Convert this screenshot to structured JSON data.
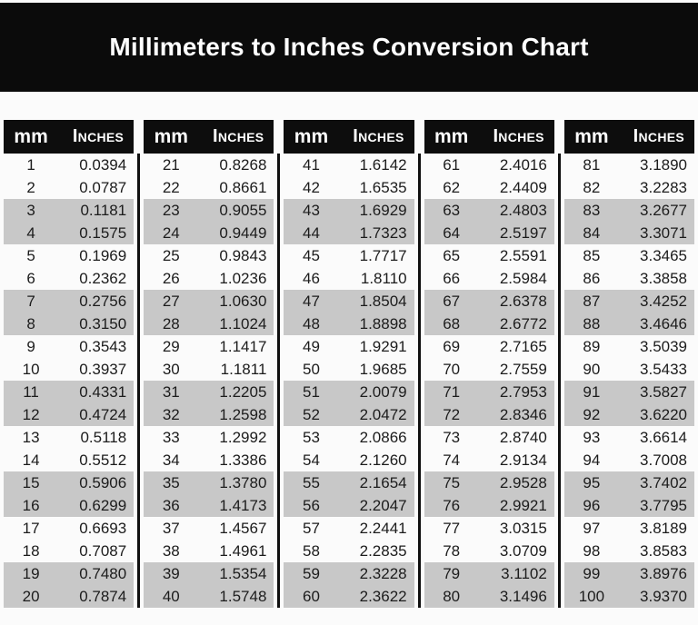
{
  "title": "Millimeters to Inches Conversion Chart",
  "colors": {
    "page_bg": "#fbfbfb",
    "banner_bg": "#0b0b0b",
    "header_bg": "#0d0d0d",
    "header_text": "#ffffff",
    "text": "#1c1c1c",
    "stripe": "#c8c8c8",
    "divider": "#101010"
  },
  "chart_data": {
    "type": "table",
    "title": "Millimeters to Inches Conversion Chart",
    "columns": [
      "mm",
      "Inches"
    ],
    "layout": {
      "column_groups": 5,
      "rows_per_group": 20,
      "stripe_pattern": "alternating pairs of rows shaded gray",
      "mm_range": [
        1,
        100
      ]
    },
    "groups": [
      [
        [
          "1",
          "0.0394"
        ],
        [
          "2",
          "0.0787"
        ],
        [
          "3",
          "0.1181"
        ],
        [
          "4",
          "0.1575"
        ],
        [
          "5",
          "0.1969"
        ],
        [
          "6",
          "0.2362"
        ],
        [
          "7",
          "0.2756"
        ],
        [
          "8",
          "0.3150"
        ],
        [
          "9",
          "0.3543"
        ],
        [
          "10",
          "0.3937"
        ],
        [
          "11",
          "0.4331"
        ],
        [
          "12",
          "0.4724"
        ],
        [
          "13",
          "0.5118"
        ],
        [
          "14",
          "0.5512"
        ],
        [
          "15",
          "0.5906"
        ],
        [
          "16",
          "0.6299"
        ],
        [
          "17",
          "0.6693"
        ],
        [
          "18",
          "0.7087"
        ],
        [
          "19",
          "0.7480"
        ],
        [
          "20",
          "0.7874"
        ]
      ],
      [
        [
          "21",
          "0.8268"
        ],
        [
          "22",
          "0.8661"
        ],
        [
          "23",
          "0.9055"
        ],
        [
          "24",
          "0.9449"
        ],
        [
          "25",
          "0.9843"
        ],
        [
          "26",
          "1.0236"
        ],
        [
          "27",
          "1.0630"
        ],
        [
          "28",
          "1.1024"
        ],
        [
          "29",
          "1.1417"
        ],
        [
          "30",
          "1.1811"
        ],
        [
          "31",
          "1.2205"
        ],
        [
          "32",
          "1.2598"
        ],
        [
          "33",
          "1.2992"
        ],
        [
          "34",
          "1.3386"
        ],
        [
          "35",
          "1.3780"
        ],
        [
          "36",
          "1.4173"
        ],
        [
          "37",
          "1.4567"
        ],
        [
          "38",
          "1.4961"
        ],
        [
          "39",
          "1.5354"
        ],
        [
          "40",
          "1.5748"
        ]
      ],
      [
        [
          "41",
          "1.6142"
        ],
        [
          "42",
          "1.6535"
        ],
        [
          "43",
          "1.6929"
        ],
        [
          "44",
          "1.7323"
        ],
        [
          "45",
          "1.7717"
        ],
        [
          "46",
          "1.8110"
        ],
        [
          "47",
          "1.8504"
        ],
        [
          "48",
          "1.8898"
        ],
        [
          "49",
          "1.9291"
        ],
        [
          "50",
          "1.9685"
        ],
        [
          "51",
          "2.0079"
        ],
        [
          "52",
          "2.0472"
        ],
        [
          "53",
          "2.0866"
        ],
        [
          "54",
          "2.1260"
        ],
        [
          "55",
          "2.1654"
        ],
        [
          "56",
          "2.2047"
        ],
        [
          "57",
          "2.2441"
        ],
        [
          "58",
          "2.2835"
        ],
        [
          "59",
          "2.3228"
        ],
        [
          "60",
          "2.3622"
        ]
      ],
      [
        [
          "61",
          "2.4016"
        ],
        [
          "62",
          "2.4409"
        ],
        [
          "63",
          "2.4803"
        ],
        [
          "64",
          "2.5197"
        ],
        [
          "65",
          "2.5591"
        ],
        [
          "66",
          "2.5984"
        ],
        [
          "67",
          "2.6378"
        ],
        [
          "68",
          "2.6772"
        ],
        [
          "69",
          "2.7165"
        ],
        [
          "70",
          "2.7559"
        ],
        [
          "71",
          "2.7953"
        ],
        [
          "72",
          "2.8346"
        ],
        [
          "73",
          "2.8740"
        ],
        [
          "74",
          "2.9134"
        ],
        [
          "75",
          "2.9528"
        ],
        [
          "76",
          "2.9921"
        ],
        [
          "77",
          "3.0315"
        ],
        [
          "78",
          "3.0709"
        ],
        [
          "79",
          "3.1102"
        ],
        [
          "80",
          "3.1496"
        ]
      ],
      [
        [
          "81",
          "3.1890"
        ],
        [
          "82",
          "3.2283"
        ],
        [
          "83",
          "3.2677"
        ],
        [
          "84",
          "3.3071"
        ],
        [
          "85",
          "3.3465"
        ],
        [
          "86",
          "3.3858"
        ],
        [
          "87",
          "3.4252"
        ],
        [
          "88",
          "3.4646"
        ],
        [
          "89",
          "3.5039"
        ],
        [
          "90",
          "3.5433"
        ],
        [
          "91",
          "3.5827"
        ],
        [
          "92",
          "3.6220"
        ],
        [
          "93",
          "3.6614"
        ],
        [
          "94",
          "3.7008"
        ],
        [
          "95",
          "3.7402"
        ],
        [
          "96",
          "3.7795"
        ],
        [
          "97",
          "3.8189"
        ],
        [
          "98",
          "3.8583"
        ],
        [
          "99",
          "3.8976"
        ],
        [
          "100",
          "3.9370"
        ]
      ]
    ]
  }
}
